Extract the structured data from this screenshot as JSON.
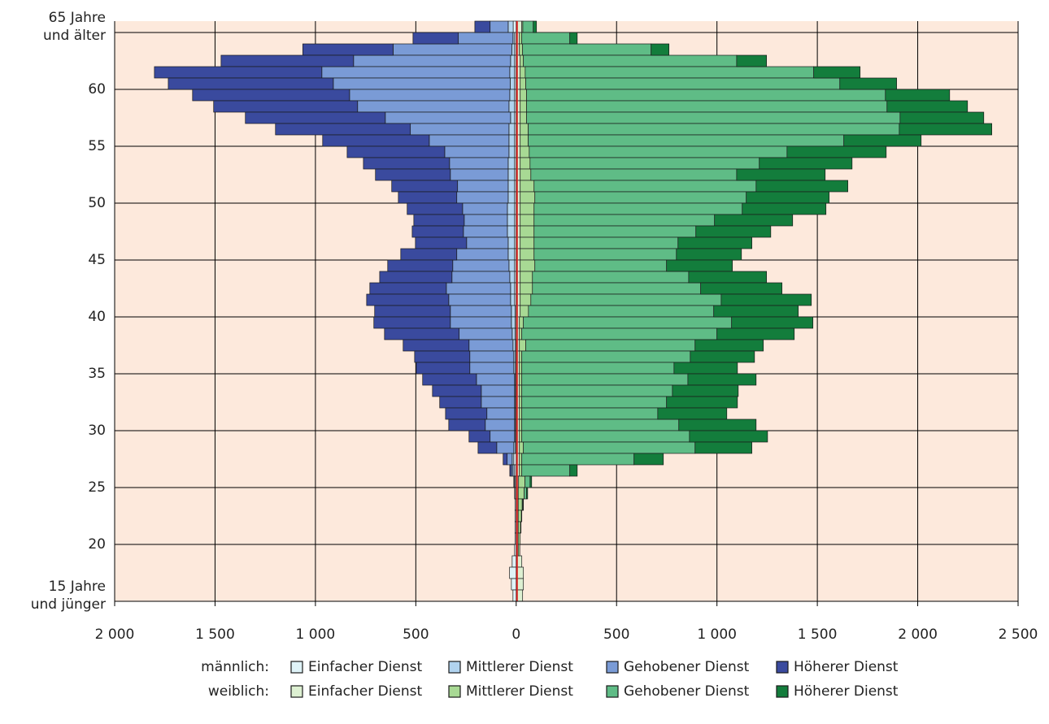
{
  "chart_data": {
    "type": "stacked-pyramid",
    "categories": [
      "65 Jahre\nund älter",
      null,
      null,
      null,
      null,
      "60",
      null,
      null,
      null,
      null,
      "55",
      null,
      null,
      null,
      null,
      "50",
      null,
      null,
      null,
      null,
      "45",
      null,
      null,
      null,
      null,
      "40",
      null,
      null,
      null,
      null,
      "35",
      null,
      null,
      null,
      null,
      "30",
      null,
      null,
      null,
      null,
      "25",
      null,
      null,
      null,
      null,
      "20",
      null,
      null,
      null,
      null,
      "15 Jahre\nund jünger"
    ],
    "xlim": [
      -2000,
      2500
    ],
    "xticks": [
      {
        "value": -2000,
        "label": "2 000"
      },
      {
        "value": -1500,
        "label": "1 500"
      },
      {
        "value": -1000,
        "label": "1 000"
      },
      {
        "value": -500,
        "label": "500"
      },
      0,
      500,
      {
        "value": 1000,
        "label": "1 000"
      },
      {
        "value": 1500,
        "label": "1 500"
      },
      {
        "value": 2000,
        "label": "2 000"
      },
      {
        "value": 2500,
        "label": "2 500"
      }
    ],
    "grid": true,
    "groups": [
      {
        "name": "männlich:",
        "series": [
          {
            "name": "Einfacher Dienst",
            "color": "#dff3f8",
            "values": [
              -15,
              -8,
              -8,
              -8,
              -8,
              -8,
              -8,
              -8,
              -8,
              -8,
              -8,
              -8,
              -8,
              -8,
              -8,
              -8,
              -8,
              -8,
              -8,
              -8,
              -8,
              -8,
              -8,
              -8,
              -8,
              -6,
              -6,
              -6,
              -4,
              -4,
              -4,
              -4,
              -4,
              -4,
              -4,
              -4,
              -4,
              -4,
              -12,
              -8,
              -6,
              -6,
              -6,
              -6,
              -6,
              -6,
              -8,
              -20,
              -33,
              -24,
              -16
            ]
          },
          {
            "name": "Mittlerer Dienst",
            "color": "#b1d3ef",
            "values": [
              -25,
              -8,
              -14,
              -20,
              -24,
              -22,
              -24,
              -28,
              -20,
              -28,
              -28,
              -28,
              -32,
              -32,
              -32,
              -32,
              -36,
              -36,
              -36,
              -32,
              -32,
              -28,
              -24,
              -20,
              -20,
              -18,
              -18,
              -14,
              -12,
              -8,
              -8,
              -4,
              -4,
              -4,
              -4,
              -4,
              -4,
              -8,
              -8,
              -8,
              -4,
              -2,
              0,
              0,
              0,
              0,
              0,
              0,
              0,
              0,
              0
            ]
          },
          {
            "name": "Gehobener Dienst",
            "color": "#7a9bd6",
            "values": [
              -90,
              -272,
              -591,
              -782,
              -936,
              -881,
              -798,
              -754,
              -624,
              -491,
              -397,
              -320,
              -292,
              -288,
              -252,
              -256,
              -223,
              -215,
              -219,
              -207,
              -256,
              -280,
              -288,
              -320,
              -308,
              -304,
              -304,
              -264,
              -219,
              -219,
              -219,
              -190,
              -166,
              -166,
              -138,
              -146,
              -122,
              -85,
              -25,
              -8,
              -1,
              0,
              0,
              0,
              0,
              0,
              0,
              0,
              0,
              0,
              0
            ]
          },
          {
            "name": "Höherer Dienst",
            "color": "#3a4a9e",
            "values": [
              -76,
              -226,
              -450,
              -660,
              -834,
              -822,
              -782,
              -717,
              -697,
              -672,
              -531,
              -486,
              -429,
              -373,
              -328,
              -291,
              -276,
              -251,
              -255,
              -255,
              -279,
              -324,
              -360,
              -381,
              -409,
              -377,
              -381,
              -372,
              -328,
              -275,
              -267,
              -268,
              -243,
              -207,
              -206,
              -182,
              -105,
              -93,
              -20,
              -8,
              -1,
              0,
              0,
              0,
              0,
              0,
              0,
              0,
              0,
              0,
              0
            ]
          }
        ]
      },
      {
        "name": "weiblich:",
        "series": [
          {
            "name": "Einfacher Dienst",
            "color": "#ddf0d2",
            "values": [
              28,
              16,
              16,
              20,
              20,
              20,
              20,
              20,
              20,
              20,
              20,
              20,
              20,
              20,
              20,
              20,
              20,
              20,
              20,
              20,
              20,
              20,
              20,
              20,
              20,
              20,
              16,
              16,
              16,
              16,
              16,
              16,
              16,
              16,
              16,
              16,
              16,
              16,
              16,
              16,
              12,
              10,
              10,
              10,
              10,
              10,
              10,
              28,
              36,
              36,
              32
            ]
          },
          {
            "name": "Mittlerer Dienst",
            "color": "#a8d994",
            "values": [
              5,
              12,
              16,
              16,
              25,
              28,
              32,
              32,
              32,
              40,
              40,
              45,
              49,
              53,
              69,
              73,
              69,
              69,
              69,
              69,
              69,
              73,
              61,
              61,
              53,
              41,
              20,
              12,
              32,
              12,
              12,
              12,
              12,
              12,
              12,
              12,
              12,
              20,
              12,
              12,
              32,
              30,
              20,
              16,
              12,
              10,
              8,
              0,
              0,
              0,
              0
            ]
          },
          {
            "name": "Gehobener Dienst",
            "color": "#5fbc86",
            "values": [
              52,
              239,
              640,
              1062,
              1437,
              1564,
              1787,
              1795,
              1860,
              1848,
              1572,
              1284,
              1142,
              1025,
              1106,
              1053,
              1037,
              899,
              806,
              717,
              709,
              656,
              778,
              838,
              948,
              923,
              1037,
              972,
              843,
              839,
              758,
              827,
              750,
              721,
              677,
              782,
              835,
              855,
              559,
              239,
              25,
              12,
              4,
              2,
              2,
              0,
              0,
              0,
              0,
              0,
              0
            ]
          },
          {
            "name": "Höherer Dienst",
            "color": "#137d3c",
            "values": [
              16,
              37,
              89,
              149,
              231,
              283,
              320,
              401,
              417,
              461,
              385,
              494,
              462,
              441,
              457,
              413,
              417,
              389,
              373,
              368,
              324,
              328,
              388,
              405,
              449,
              421,
              405,
              385,
              340,
              320,
              316,
              340,
              328,
              353,
              344,
              385,
              389,
              283,
              146,
              37,
              8,
              5,
              2,
              0,
              0,
              0,
              0,
              0,
              0,
              0,
              0
            ]
          }
        ]
      }
    ]
  }
}
